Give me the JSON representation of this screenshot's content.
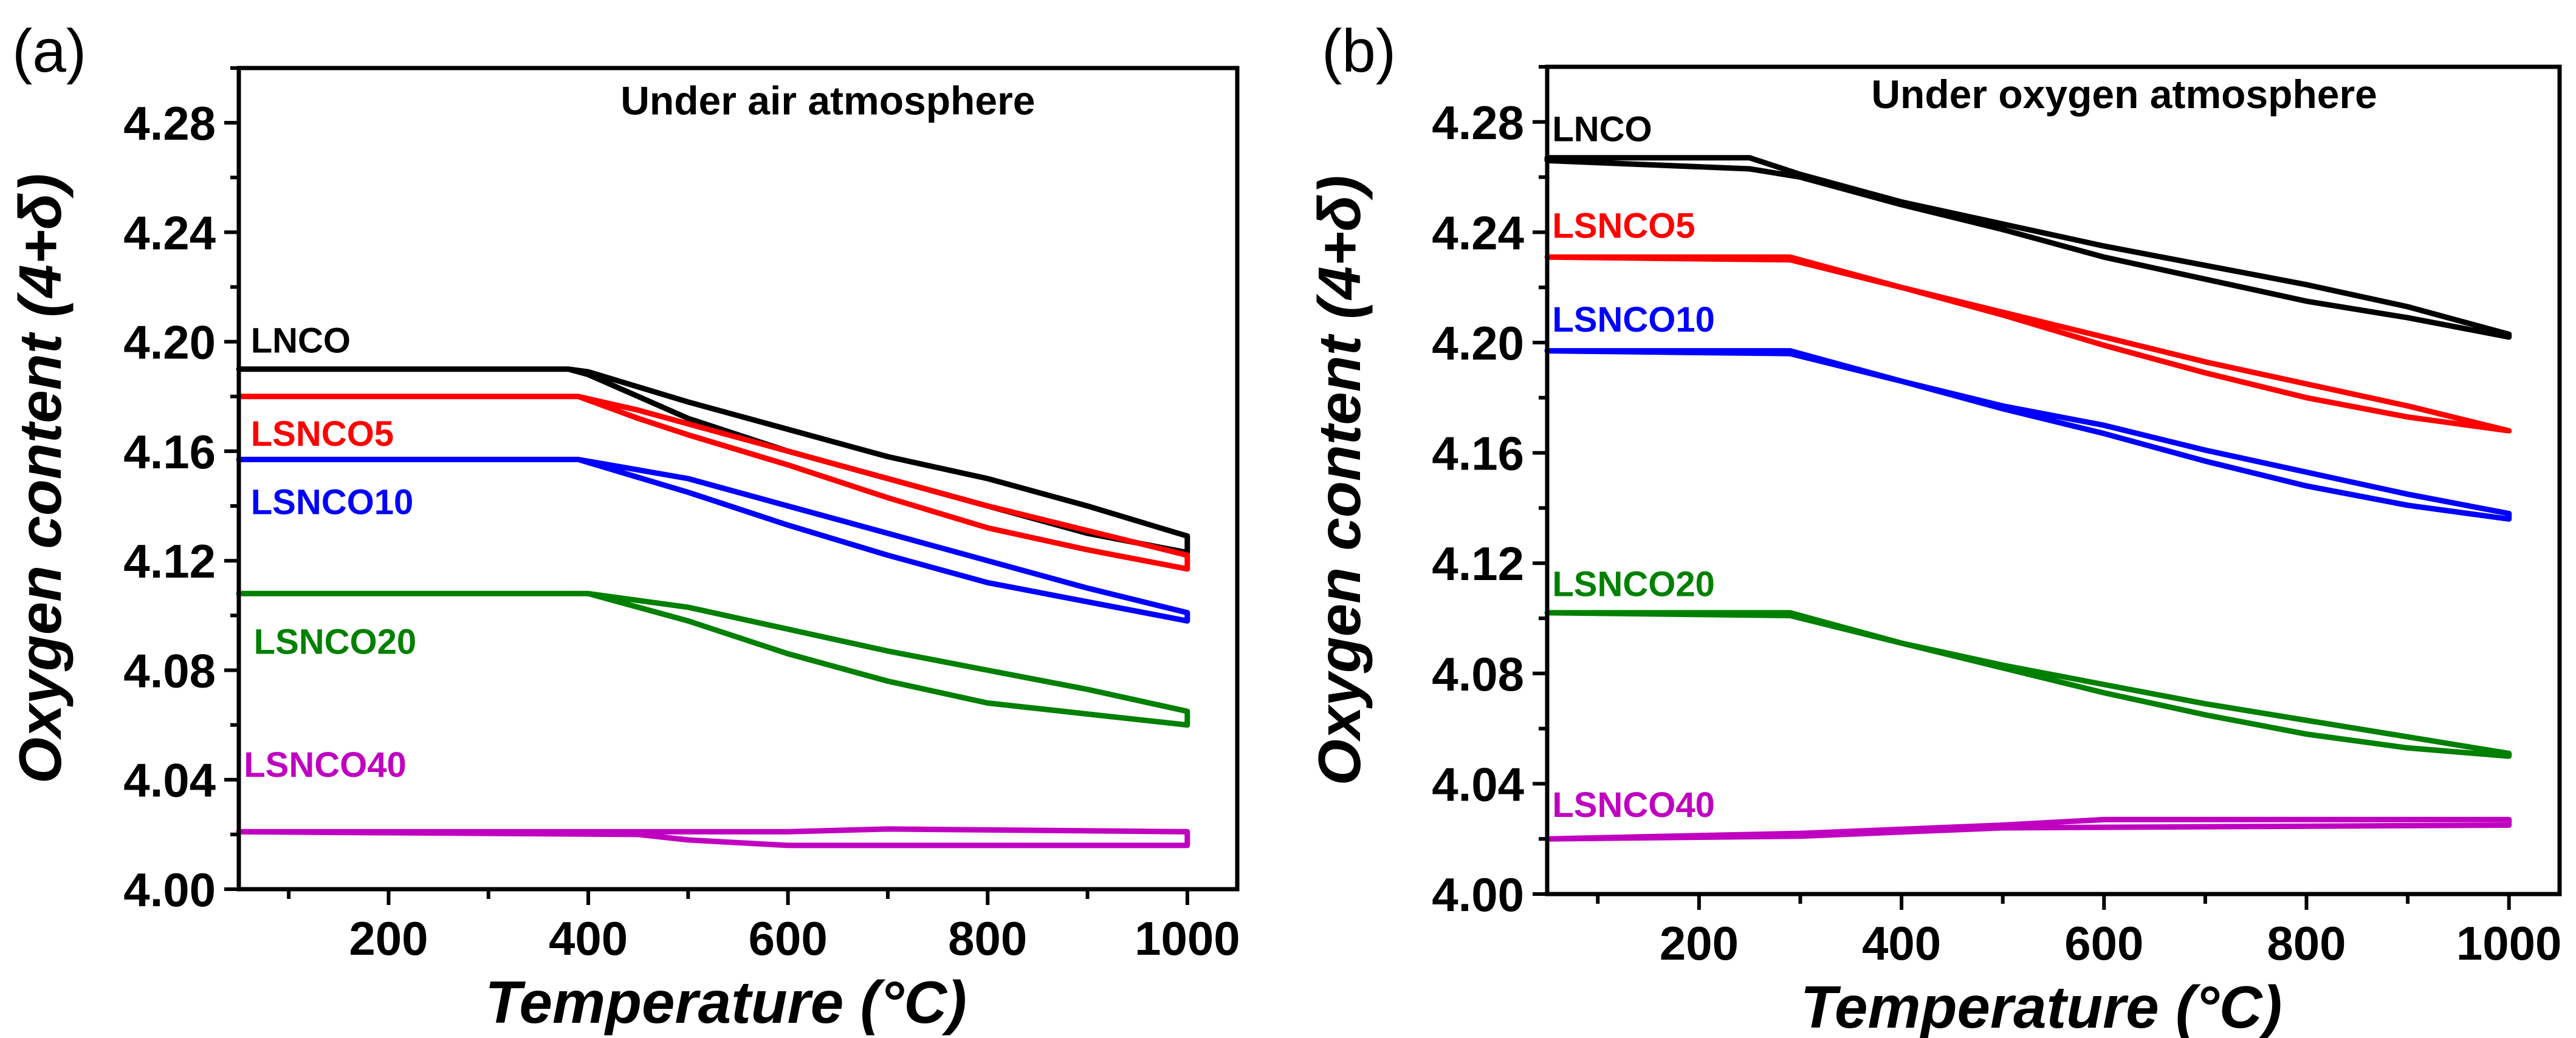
{
  "chart_data": [
    {
      "type": "line",
      "panel_label": "(a)",
      "title": "Under air atmosphere",
      "xlabel": "Temperature (°C)",
      "ylabel": "Oxygen content (4+δ)",
      "xlim": [
        50,
        1050
      ],
      "ylim": [
        4.0,
        4.3
      ],
      "xticks": [
        "200",
        "400",
        "600",
        "800",
        "1000"
      ],
      "yticks": [
        "4.00",
        "4.04",
        "4.08",
        "4.12",
        "4.16",
        "4.20",
        "4.24",
        "4.28"
      ],
      "title_at": [
        640,
        4.283
      ],
      "series": [
        {
          "name": "LNCO",
          "color": "#000000",
          "label_at": [
            62,
            4.196
          ],
          "heating": {
            "x": [
              50,
              380,
              400,
              500,
              600,
              700,
              800,
              900,
              1000
            ],
            "y": [
              4.19,
              4.19,
              4.189,
              4.178,
              4.168,
              4.158,
              4.15,
              4.14,
              4.129
            ]
          },
          "cooling": {
            "x": [
              50,
              380,
              400,
              450,
              500,
              600,
              700,
              800,
              900,
              1000
            ],
            "y": [
              4.19,
              4.19,
              4.188,
              4.18,
              4.172,
              4.16,
              4.15,
              4.14,
              4.13,
              4.123
            ]
          }
        },
        {
          "name": "LSNCO5",
          "color": "#ff0000",
          "label_at": [
            62,
            4.162
          ],
          "heating": {
            "x": [
              50,
              390,
              450,
              500,
              600,
              700,
              800,
              900,
              1000
            ],
            "y": [
              4.18,
              4.18,
              4.175,
              4.17,
              4.16,
              4.15,
              4.14,
              4.131,
              4.122
            ]
          },
          "cooling": {
            "x": [
              50,
              390,
              450,
              500,
              600,
              700,
              800,
              900,
              1000
            ],
            "y": [
              4.18,
              4.18,
              4.172,
              4.166,
              4.155,
              4.143,
              4.132,
              4.124,
              4.117
            ]
          }
        },
        {
          "name": "LSNCO10",
          "color": "#0000ff",
          "label_at": [
            62,
            4.137
          ],
          "heating": {
            "x": [
              50,
              390,
              500,
              600,
              700,
              800,
              900,
              1000
            ],
            "y": [
              4.157,
              4.157,
              4.15,
              4.14,
              4.13,
              4.12,
              4.11,
              4.101
            ]
          },
          "cooling": {
            "x": [
              50,
              390,
              500,
              600,
              700,
              800,
              900,
              1000
            ],
            "y": [
              4.157,
              4.157,
              4.145,
              4.133,
              4.122,
              4.112,
              4.105,
              4.098
            ]
          }
        },
        {
          "name": "LSNCO20",
          "color": "#008000",
          "label_at": [
            65,
            4.086
          ],
          "heating": {
            "x": [
              50,
              400,
              500,
              600,
              700,
              800,
              900,
              1000
            ],
            "y": [
              4.108,
              4.108,
              4.103,
              4.095,
              4.087,
              4.08,
              4.073,
              4.065
            ]
          },
          "cooling": {
            "x": [
              50,
              400,
              500,
              600,
              700,
              800,
              900,
              1000
            ],
            "y": [
              4.108,
              4.108,
              4.098,
              4.086,
              4.076,
              4.068,
              4.064,
              4.06
            ]
          }
        },
        {
          "name": "LSNCO40",
          "color": "#c000c0",
          "label_at": [
            55,
            4.041
          ],
          "heating": {
            "x": [
              50,
              400,
              600,
              700,
              1000
            ],
            "y": [
              4.021,
              4.021,
              4.021,
              4.022,
              4.021
            ]
          },
          "cooling": {
            "x": [
              50,
              450,
              500,
              600,
              1000
            ],
            "y": [
              4.021,
              4.02,
              4.018,
              4.016,
              4.016
            ]
          }
        }
      ]
    },
    {
      "type": "line",
      "panel_label": "(b)",
      "title": "Under oxygen atmosphere",
      "xlabel": "Temperature (°C)",
      "ylabel": "Oxygen content (4+δ)",
      "xlim": [
        50,
        1050
      ],
      "ylim": [
        4.0,
        4.3
      ],
      "xticks": [
        "200",
        "400",
        "600",
        "800",
        "1000"
      ],
      "yticks": [
        "4.00",
        "4.04",
        "4.08",
        "4.12",
        "4.16",
        "4.20",
        "4.24",
        "4.28"
      ],
      "title_at": [
        620,
        4.285
      ],
      "series": [
        {
          "name": "LNCO",
          "color": "#000000",
          "label_at": [
            55,
            4.273
          ],
          "heating": {
            "x": [
              50,
              250,
              300,
              400,
              500,
              600,
              700,
              800,
              900,
              1000
            ],
            "y": [
              4.267,
              4.267,
              4.261,
              4.251,
              4.243,
              4.235,
              4.228,
              4.221,
              4.213,
              4.203
            ]
          },
          "cooling": {
            "x": [
              50,
              250,
              300,
              400,
              500,
              600,
              700,
              800,
              900,
              1000
            ],
            "y": [
              4.266,
              4.263,
              4.26,
              4.25,
              4.241,
              4.231,
              4.223,
              4.215,
              4.209,
              4.202
            ]
          }
        },
        {
          "name": "LSNCO5",
          "color": "#ff0000",
          "label_at": [
            55,
            4.238
          ],
          "heating": {
            "x": [
              50,
              290,
              400,
              500,
              600,
              700,
              800,
              900,
              1000
            ],
            "y": [
              4.231,
              4.231,
              4.22,
              4.211,
              4.202,
              4.193,
              4.185,
              4.177,
              4.168
            ]
          },
          "cooling": {
            "x": [
              50,
              290,
              400,
              500,
              600,
              700,
              800,
              900,
              1000
            ],
            "y": [
              4.231,
              4.23,
              4.22,
              4.21,
              4.199,
              4.189,
              4.18,
              4.173,
              4.168
            ]
          }
        },
        {
          "name": "LSNCO10",
          "color": "#0000ff",
          "label_at": [
            55,
            4.204
          ],
          "heating": {
            "x": [
              50,
              290,
              400,
              500,
              600,
              700,
              800,
              900,
              1000
            ],
            "y": [
              4.197,
              4.197,
              4.186,
              4.177,
              4.17,
              4.161,
              4.153,
              4.145,
              4.138
            ]
          },
          "cooling": {
            "x": [
              50,
              290,
              400,
              500,
              600,
              700,
              800,
              900,
              1000
            ],
            "y": [
              4.197,
              4.196,
              4.186,
              4.176,
              4.167,
              4.157,
              4.148,
              4.141,
              4.136
            ]
          }
        },
        {
          "name": "LSNCO20",
          "color": "#008000",
          "label_at": [
            55,
            4.108
          ],
          "heating": {
            "x": [
              50,
              290,
              400,
              500,
              600,
              700,
              800,
              900,
              1000
            ],
            "y": [
              4.102,
              4.102,
              4.091,
              4.083,
              4.076,
              4.069,
              4.063,
              4.057,
              4.051
            ]
          },
          "cooling": {
            "x": [
              50,
              290,
              400,
              500,
              600,
              700,
              800,
              900,
              1000
            ],
            "y": [
              4.102,
              4.101,
              4.091,
              4.082,
              4.073,
              4.065,
              4.058,
              4.053,
              4.05
            ]
          }
        },
        {
          "name": "LSNCO40",
          "color": "#c000c0",
          "label_at": [
            55,
            4.028
          ],
          "heating": {
            "x": [
              50,
              300,
              500,
              600,
              1000
            ],
            "y": [
              4.02,
              4.022,
              4.025,
              4.027,
              4.027
            ]
          },
          "cooling": {
            "x": [
              50,
              300,
              500,
              1000
            ],
            "y": [
              4.02,
              4.021,
              4.024,
              4.025
            ]
          }
        }
      ]
    }
  ]
}
